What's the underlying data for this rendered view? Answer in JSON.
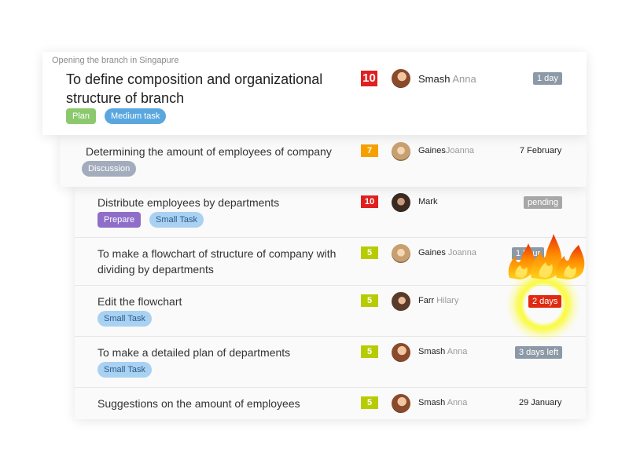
{
  "main_task": {
    "breadcrumb": "Opening the branch in Singapure",
    "title": "To define composition and organizational structure of branch",
    "tags": [
      "Plan",
      "Medium task"
    ],
    "priority": "10",
    "assignee_first": "Smash",
    "assignee_last": "Anna",
    "deadline": "1 day"
  },
  "subtask": {
    "title": "Determining the amount of employees of company",
    "tags": [
      "Discussion"
    ],
    "priority": "7",
    "assignee_first": "Gaines",
    "assignee_last": "Joanna",
    "deadline": "7 February"
  },
  "tasks": [
    {
      "title": "Distribute employees by departments",
      "tags": [
        "Prepare",
        "Small Task"
      ],
      "priority": "10",
      "assignee_first": "Mark",
      "assignee_last": "",
      "deadline": "pending"
    },
    {
      "title": "To make a flowchart of structure of company with dividing by departments",
      "tags": [],
      "priority": "5",
      "assignee_first": "Gaines",
      "assignee_last": "Joanna",
      "deadline": "1 hour"
    },
    {
      "title": "Edit the flowchart",
      "tags": [
        "Small Task"
      ],
      "priority": "5",
      "assignee_first": "Farr",
      "assignee_last": "Hilary",
      "deadline": "2 days"
    },
    {
      "title": "To make a detailed plan of departments",
      "tags": [
        "Small Task"
      ],
      "priority": "5",
      "assignee_first": "Smash",
      "assignee_last": "Anna",
      "deadline": "3 days left"
    },
    {
      "title": "Suggestions on the amount of employees",
      "tags": [],
      "priority": "5",
      "assignee_first": "Smash",
      "assignee_last": "Anna",
      "deadline": "29 January"
    }
  ],
  "colors": {
    "priority_10": "#e02020",
    "priority_7": "#f5a000",
    "priority_5": "#b7cc00",
    "tag_plan": "#8cc96e",
    "tag_medium": "#5aa7df",
    "tag_discussion": "#a3acbd",
    "tag_prepare": "#8e6ec8",
    "tag_small": "#a9d1f2",
    "deadline_grey": "#8c99a6",
    "deadline_urgent": "#e02a10"
  },
  "icons": {
    "flames": "flame-icon",
    "avatar": "avatar-photo"
  }
}
